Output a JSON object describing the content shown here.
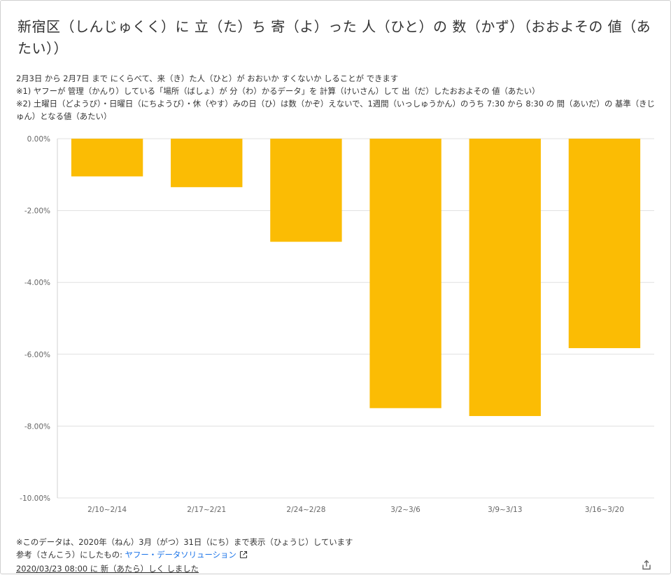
{
  "title": "新宿区（しんじゅくく）に 立（た）ち 寄（よ）った 人（ひと）の 数（かず）（おおよその 値（あたい））",
  "notes": [
    "2月3日 から 2月7日 まで にくらべて、来（き）た人（ひと）が おおいか すくないか しることが できます",
    "※1) ヤフーが 管理（かんり）している「場所（ばしょ）が 分（わ）かるデータ」を 計算（けいさん）して 出（だ）したおおよその 値（あたい）",
    "※2) 土曜日（どようび）・日曜日（にちようび）・休（やす）みの日（ひ）は数（かぞ）えないで、1週間（いっしゅうかん）のうち 7:30 から 8:30 の 間（あいだ）の 基準（きじゅん）となる値（あたい）"
  ],
  "chart_data": {
    "type": "bar",
    "categories": [
      "2/10~2/14",
      "2/17~2/21",
      "2/24~2/28",
      "3/2~3/6",
      "3/9~3/13",
      "3/16~3/20"
    ],
    "values": [
      -1.05,
      -1.35,
      -2.87,
      -7.5,
      -7.72,
      -5.83
    ],
    "y_ticks": [
      "0.00%",
      "-2.00%",
      "-4.00%",
      "-6.00%",
      "-8.00%",
      "-10.00%"
    ],
    "ylim": [
      -10,
      0
    ],
    "bar_color": "#fbbc04",
    "grid": true,
    "legend": "none"
  },
  "footer": {
    "note": "※このデータは、2020年（ねん）3月（がつ）31日（にち）まで表示（ひょうじ）しています",
    "ref_prefix": "参考（さんこう）にしたもの: ",
    "ref_link": "ヤフー・データソリューション",
    "updated": "2020/03/23 08:00 に 新（あたら）しく しました"
  },
  "icons": {
    "external_link": "external-link-icon",
    "share": "share-icon"
  },
  "colors": {
    "link": "#1a73e8",
    "grid": "#e0e0e0",
    "axis_text": "#666666"
  }
}
